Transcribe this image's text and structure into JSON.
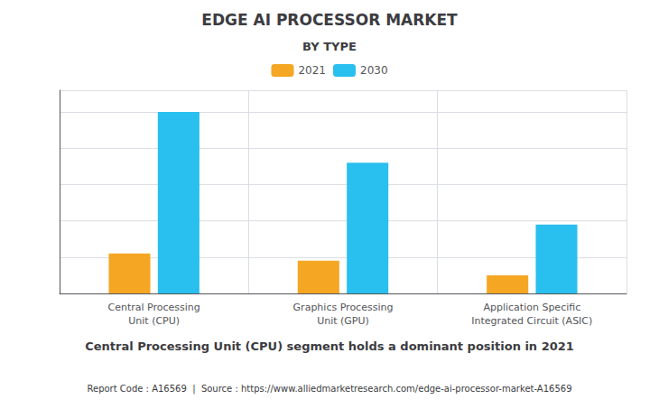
{
  "chart_data": {
    "type": "bar",
    "title": "EDGE AI PROCESSOR MARKET",
    "subtitle": "BY TYPE",
    "categories": [
      "Central Processing\nUnit (CPU)",
      "Graphics Processing\nUnit (GPU)",
      "Application Specific\nIntegrated Circuit (ASIC)"
    ],
    "series": [
      {
        "name": "2021",
        "color": "#F5A623",
        "values": [
          22,
          18,
          10
        ]
      },
      {
        "name": "2030",
        "color": "#29BFEF",
        "values": [
          100,
          72,
          38
        ]
      }
    ],
    "ylim": [
      0,
      112
    ],
    "yticks": [
      0,
      20,
      40,
      60,
      80,
      100
    ],
    "grid": true,
    "legend": "top",
    "tick_labels": "x",
    "annotations": [
      "Central Processing Unit (CPU) segment holds a dominant position in 2021",
      "Report Code : A16569  |  Source : https://www.alliedmarketresearch.com/edge-ai-processor-market-A16569"
    ]
  }
}
